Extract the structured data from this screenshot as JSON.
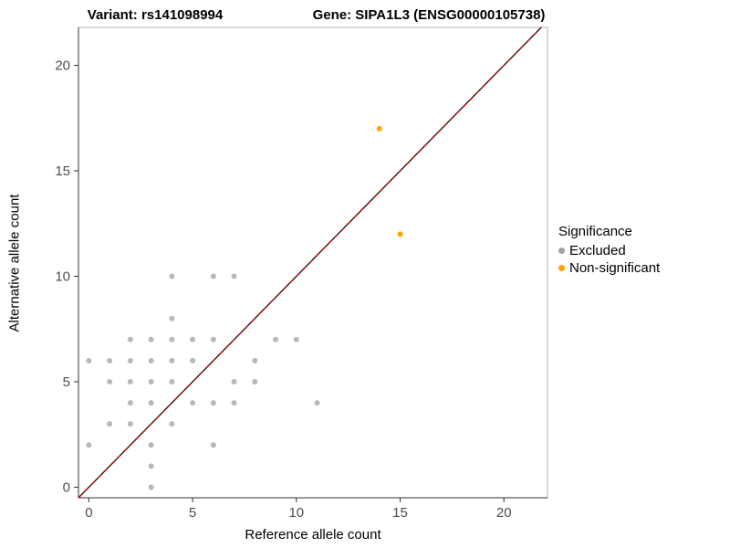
{
  "titles": {
    "left": "Variant: rs141098994",
    "right": "Gene: SIPA1L3 (ENSG00000105738)"
  },
  "chart_data": {
    "type": "scatter",
    "title": "Variant: rs141098994 / Gene: SIPA1L3 (ENSG00000105738)",
    "xlabel": "Reference allele count",
    "ylabel": "Alternative allele count",
    "xlim": [
      -0.5,
      22.1
    ],
    "ylim": [
      -0.5,
      21.8
    ],
    "xticks": [
      0,
      5,
      10,
      15,
      20
    ],
    "yticks": [
      0,
      5,
      10,
      15,
      20
    ],
    "grid": false,
    "identity_line": {
      "style": "dashed",
      "color": "#cc0000",
      "underlay": "#1a1a1a"
    },
    "legend": {
      "title": "Significance",
      "position": "right"
    },
    "series": [
      {
        "name": "Excluded",
        "color": "#a0a0a0",
        "opacity": 0.75,
        "points": [
          [
            0,
            2
          ],
          [
            0,
            6
          ],
          [
            1,
            3
          ],
          [
            1,
            5
          ],
          [
            1,
            6
          ],
          [
            2,
            3
          ],
          [
            2,
            4
          ],
          [
            2,
            5
          ],
          [
            2,
            6
          ],
          [
            2,
            7
          ],
          [
            3,
            0
          ],
          [
            3,
            1
          ],
          [
            3,
            2
          ],
          [
            3,
            4
          ],
          [
            3,
            5
          ],
          [
            3,
            6
          ],
          [
            3,
            7
          ],
          [
            4,
            3
          ],
          [
            4,
            5
          ],
          [
            4,
            6
          ],
          [
            4,
            7
          ],
          [
            4,
            8
          ],
          [
            4,
            10
          ],
          [
            5,
            4
          ],
          [
            5,
            6
          ],
          [
            5,
            7
          ],
          [
            6,
            2
          ],
          [
            6,
            4
          ],
          [
            6,
            7
          ],
          [
            6,
            10
          ],
          [
            7,
            4
          ],
          [
            7,
            5
          ],
          [
            7,
            10
          ],
          [
            8,
            5
          ],
          [
            8,
            6
          ],
          [
            9,
            7
          ],
          [
            10,
            7
          ],
          [
            11,
            4
          ]
        ]
      },
      {
        "name": "Non-significant",
        "color": "#ffa500",
        "opacity": 1,
        "points": [
          [
            14,
            17
          ],
          [
            15,
            12
          ]
        ]
      }
    ]
  }
}
